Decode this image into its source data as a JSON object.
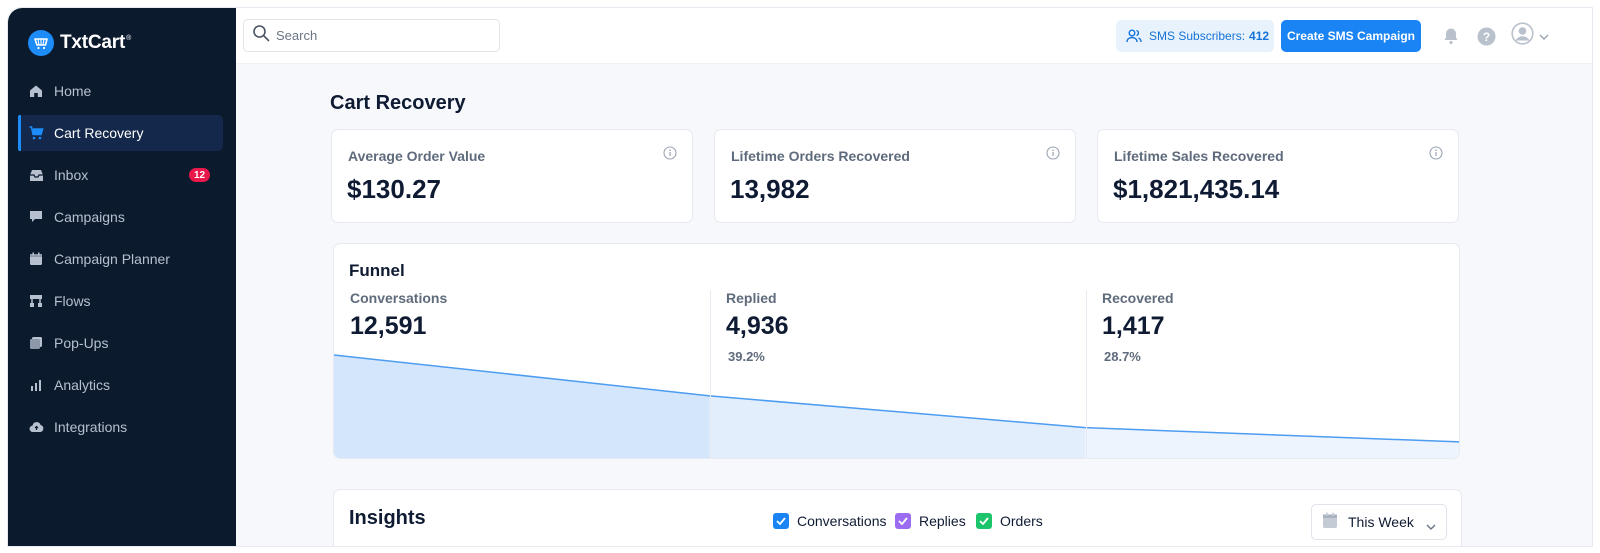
{
  "brand": {
    "name": "TxtCart",
    "reg": "®"
  },
  "sidebar": {
    "items": [
      {
        "label": "Home",
        "icon": "home-icon"
      },
      {
        "label": "Cart Recovery",
        "icon": "cart-icon",
        "active": true
      },
      {
        "label": "Inbox",
        "icon": "inbox-icon",
        "badge": "12"
      },
      {
        "label": "Campaigns",
        "icon": "campaigns-icon"
      },
      {
        "label": "Campaign Planner",
        "icon": "calendar-icon"
      },
      {
        "label": "Flows",
        "icon": "flows-icon"
      },
      {
        "label": "Pop-Ups",
        "icon": "popups-icon"
      },
      {
        "label": "Analytics",
        "icon": "analytics-icon"
      },
      {
        "label": "Integrations",
        "icon": "cloud-icon"
      }
    ]
  },
  "topbar": {
    "search_placeholder": "Search",
    "subscribers_label": "SMS Subscribers:",
    "subscribers_count": "412",
    "create_label": "Create SMS Campaign"
  },
  "page": {
    "title": "Cart Recovery"
  },
  "stats": [
    {
      "label": "Average Order Value",
      "value": "$130.27"
    },
    {
      "label": "Lifetime Orders Recovered",
      "value": "13,982"
    },
    {
      "label": "Lifetime Sales Recovered",
      "value": "$1,821,435.14"
    }
  ],
  "funnel": {
    "title": "Funnel",
    "steps": [
      {
        "label": "Conversations",
        "value": "12,591",
        "count": 12591,
        "pct": ""
      },
      {
        "label": "Replied",
        "value": "4,936",
        "count": 4936,
        "pct": "39.2%"
      },
      {
        "label": "Recovered",
        "value": "1,417",
        "count": 1417,
        "pct": "28.7%"
      }
    ]
  },
  "insights": {
    "title": "Insights",
    "legend": [
      {
        "label": "Conversations",
        "color": "#1a84f4",
        "checked": true
      },
      {
        "label": "Replies",
        "color": "#9b6cf0",
        "checked": true
      },
      {
        "label": "Orders",
        "color": "#1cc46b",
        "checked": true
      }
    ],
    "range": "This Week"
  },
  "colors": {
    "accent": "#1a84f4",
    "sidebar_bg": "#0c1a2e",
    "badge": "#e8194a"
  }
}
